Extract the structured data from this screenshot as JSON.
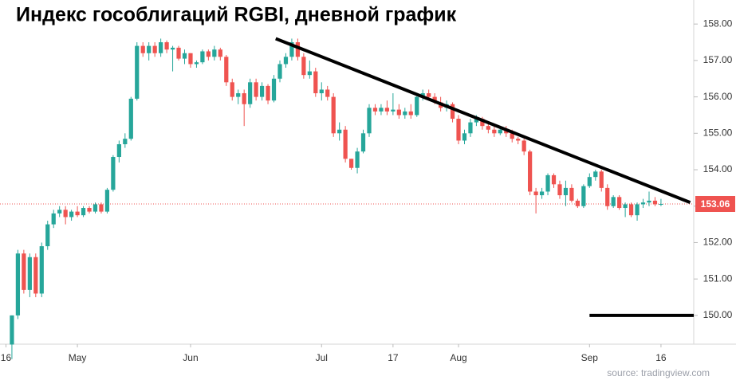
{
  "chart_data": {
    "type": "candlestick",
    "title": "Индекс гособлигаций RGBI, дневной график",
    "source": "source: tradingview.com",
    "up_color": "#26a69a",
    "down_color": "#ef5350",
    "xlim": [
      -2,
      114.5
    ],
    "xticks": [
      {
        "value": -1,
        "label": "16"
      },
      {
        "value": 11,
        "label": "May"
      },
      {
        "value": 30,
        "label": "Jun"
      },
      {
        "value": 52,
        "label": "Jul"
      },
      {
        "value": 64,
        "label": "17"
      },
      {
        "value": 75,
        "label": "Aug"
      },
      {
        "value": 97,
        "label": "Sep"
      },
      {
        "value": 109,
        "label": "16"
      }
    ],
    "ylim": [
      149.21,
      158.66
    ],
    "yticks": [
      {
        "value": 150,
        "label": "150.00"
      },
      {
        "value": 151,
        "label": "151.00"
      },
      {
        "value": 152,
        "label": "152.00"
      },
      {
        "value": 153,
        "label": "153.00"
      },
      {
        "value": 154,
        "label": "154.00"
      },
      {
        "value": 155,
        "label": "155.00"
      },
      {
        "value": 156,
        "label": "156.00"
      },
      {
        "value": 157,
        "label": "157.00"
      },
      {
        "value": 158,
        "label": "158.00"
      }
    ],
    "last_price": {
      "value": 153.06,
      "label": "153.06"
    },
    "trendline": {
      "x": [
        44.3,
        113.9
      ],
      "y": [
        157.6,
        153.1
      ]
    },
    "hline": {
      "x": [
        97,
        114.5
      ],
      "y": 150
    },
    "open": [
      149.2,
      150.0,
      151.7,
      150.7,
      151.6,
      150.6,
      151.9,
      152.5,
      152.8,
      152.9,
      152.7,
      152.85,
      152.75,
      152.95,
      152.85,
      153.05,
      152.85,
      153.45,
      154.35,
      154.7,
      154.85,
      155.95,
      157.4,
      157.2,
      157.4,
      157.2,
      157.5,
      157.3,
      157.35,
      157.05,
      157.2,
      156.9,
      156.95,
      157.25,
      157.1,
      157.3,
      157.1,
      156.4,
      156.0,
      156.1,
      155.8,
      156.4,
      156.0,
      156.3,
      155.9,
      156.5,
      156.9,
      157.1,
      157.5,
      157.1,
      156.6,
      156.7,
      156.1,
      156.2,
      156.0,
      155.0,
      155.1,
      154.3,
      154.05,
      154.5,
      155.0,
      155.7,
      155.6,
      155.7,
      155.6,
      155.65,
      155.5,
      155.6,
      155.5,
      156.0,
      156.1,
      156.0,
      155.85,
      155.7,
      155.8,
      155.4,
      154.8,
      155.0,
      155.3,
      155.4,
      155.2,
      155.1,
      155.0,
      155.1,
      155.0,
      154.85,
      154.8,
      154.5,
      153.4,
      153.3,
      153.4,
      153.85,
      153.6,
      153.3,
      153.5,
      153.15,
      153.0,
      153.55,
      153.8,
      153.95,
      153.5,
      153.0,
      153.25,
      152.95,
      153.05,
      152.75,
      153.05,
      153.1,
      153.15,
      153.05
    ],
    "high": [
      150.0,
      151.8,
      151.8,
      151.7,
      151.7,
      152.0,
      152.6,
      152.9,
      153.0,
      153.0,
      152.9,
      153.0,
      153.0,
      153.0,
      153.1,
      153.1,
      153.5,
      154.4,
      154.8,
      155.0,
      156.0,
      157.5,
      157.5,
      157.5,
      157.5,
      157.6,
      157.55,
      157.4,
      157.4,
      157.3,
      157.2,
      157.0,
      157.3,
      157.3,
      157.4,
      157.35,
      157.15,
      156.5,
      156.2,
      156.2,
      156.5,
      156.5,
      156.4,
      156.35,
      156.6,
      157.0,
      157.2,
      157.6,
      157.6,
      157.2,
      157.0,
      156.8,
      156.4,
      156.3,
      156.1,
      155.3,
      155.2,
      154.3,
      154.6,
      155.1,
      155.8,
      155.8,
      155.8,
      155.9,
      156.1,
      155.8,
      155.7,
      155.8,
      156.1,
      156.2,
      156.2,
      156.1,
      156.0,
      155.9,
      155.85,
      155.5,
      155.1,
      155.4,
      155.5,
      155.45,
      155.3,
      155.2,
      155.2,
      155.2,
      155.1,
      154.9,
      154.85,
      154.55,
      153.5,
      153.5,
      153.9,
      153.9,
      153.7,
      153.7,
      153.6,
      153.2,
      153.6,
      153.9,
      154.0,
      154.0,
      153.6,
      153.3,
      153.3,
      153.1,
      153.1,
      153.1,
      153.2,
      153.4,
      153.25,
      153.2
    ],
    "low": [
      148.8,
      149.9,
      150.6,
      150.5,
      150.5,
      150.5,
      151.8,
      152.4,
      152.7,
      152.5,
      152.6,
      152.7,
      152.7,
      152.8,
      152.8,
      152.8,
      152.8,
      153.4,
      154.2,
      154.6,
      154.8,
      155.9,
      157.1,
      157.0,
      157.1,
      157.1,
      157.2,
      156.7,
      157.0,
      156.9,
      156.8,
      156.8,
      156.9,
      157.0,
      157.0,
      157.0,
      156.3,
      155.9,
      155.8,
      155.2,
      155.7,
      155.9,
      155.9,
      155.8,
      155.85,
      156.4,
      156.8,
      157.0,
      157.0,
      156.5,
      156.5,
      156.0,
      155.9,
      155.9,
      154.9,
      154.8,
      154.2,
      154.0,
      153.9,
      154.45,
      154.9,
      155.5,
      155.5,
      155.5,
      155.5,
      155.4,
      155.4,
      155.4,
      155.45,
      155.9,
      155.9,
      155.8,
      155.6,
      155.6,
      155.3,
      154.7,
      154.7,
      154.9,
      155.2,
      155.1,
      155.0,
      154.9,
      154.95,
      154.9,
      154.75,
      154.7,
      154.4,
      153.3,
      152.8,
      153.2,
      153.3,
      153.5,
      153.2,
      153.0,
      153.1,
      152.95,
      152.95,
      153.5,
      153.7,
      153.4,
      152.9,
      152.95,
      152.9,
      152.7,
      152.7,
      152.6,
      152.95,
      153.0,
      153.0,
      153.0
    ],
    "close": [
      150.0,
      151.7,
      150.7,
      151.6,
      150.6,
      151.9,
      152.5,
      152.8,
      152.9,
      152.7,
      152.85,
      152.75,
      152.95,
      152.85,
      153.05,
      152.85,
      153.45,
      154.35,
      154.7,
      154.85,
      155.95,
      157.4,
      157.2,
      157.4,
      157.2,
      157.5,
      157.3,
      157.35,
      157.05,
      157.2,
      156.9,
      156.95,
      157.25,
      157.1,
      157.3,
      157.1,
      156.4,
      156.0,
      156.1,
      155.8,
      156.4,
      156.0,
      156.3,
      155.9,
      156.5,
      156.9,
      157.1,
      157.5,
      157.1,
      156.6,
      156.7,
      156.1,
      156.2,
      156.0,
      155.0,
      155.1,
      154.3,
      154.05,
      154.5,
      155.0,
      155.7,
      155.6,
      155.7,
      155.6,
      155.65,
      155.5,
      155.6,
      155.5,
      156.0,
      156.1,
      156.0,
      155.85,
      155.7,
      155.8,
      155.4,
      154.8,
      155.0,
      155.3,
      155.4,
      155.2,
      155.1,
      155.0,
      155.1,
      155.0,
      154.85,
      154.8,
      154.5,
      153.4,
      153.3,
      153.4,
      153.85,
      153.6,
      153.3,
      153.5,
      153.15,
      153.0,
      153.55,
      153.8,
      153.95,
      153.5,
      153.0,
      153.25,
      152.95,
      153.05,
      152.75,
      153.05,
      153.1,
      153.15,
      153.05,
      153.06
    ]
  }
}
